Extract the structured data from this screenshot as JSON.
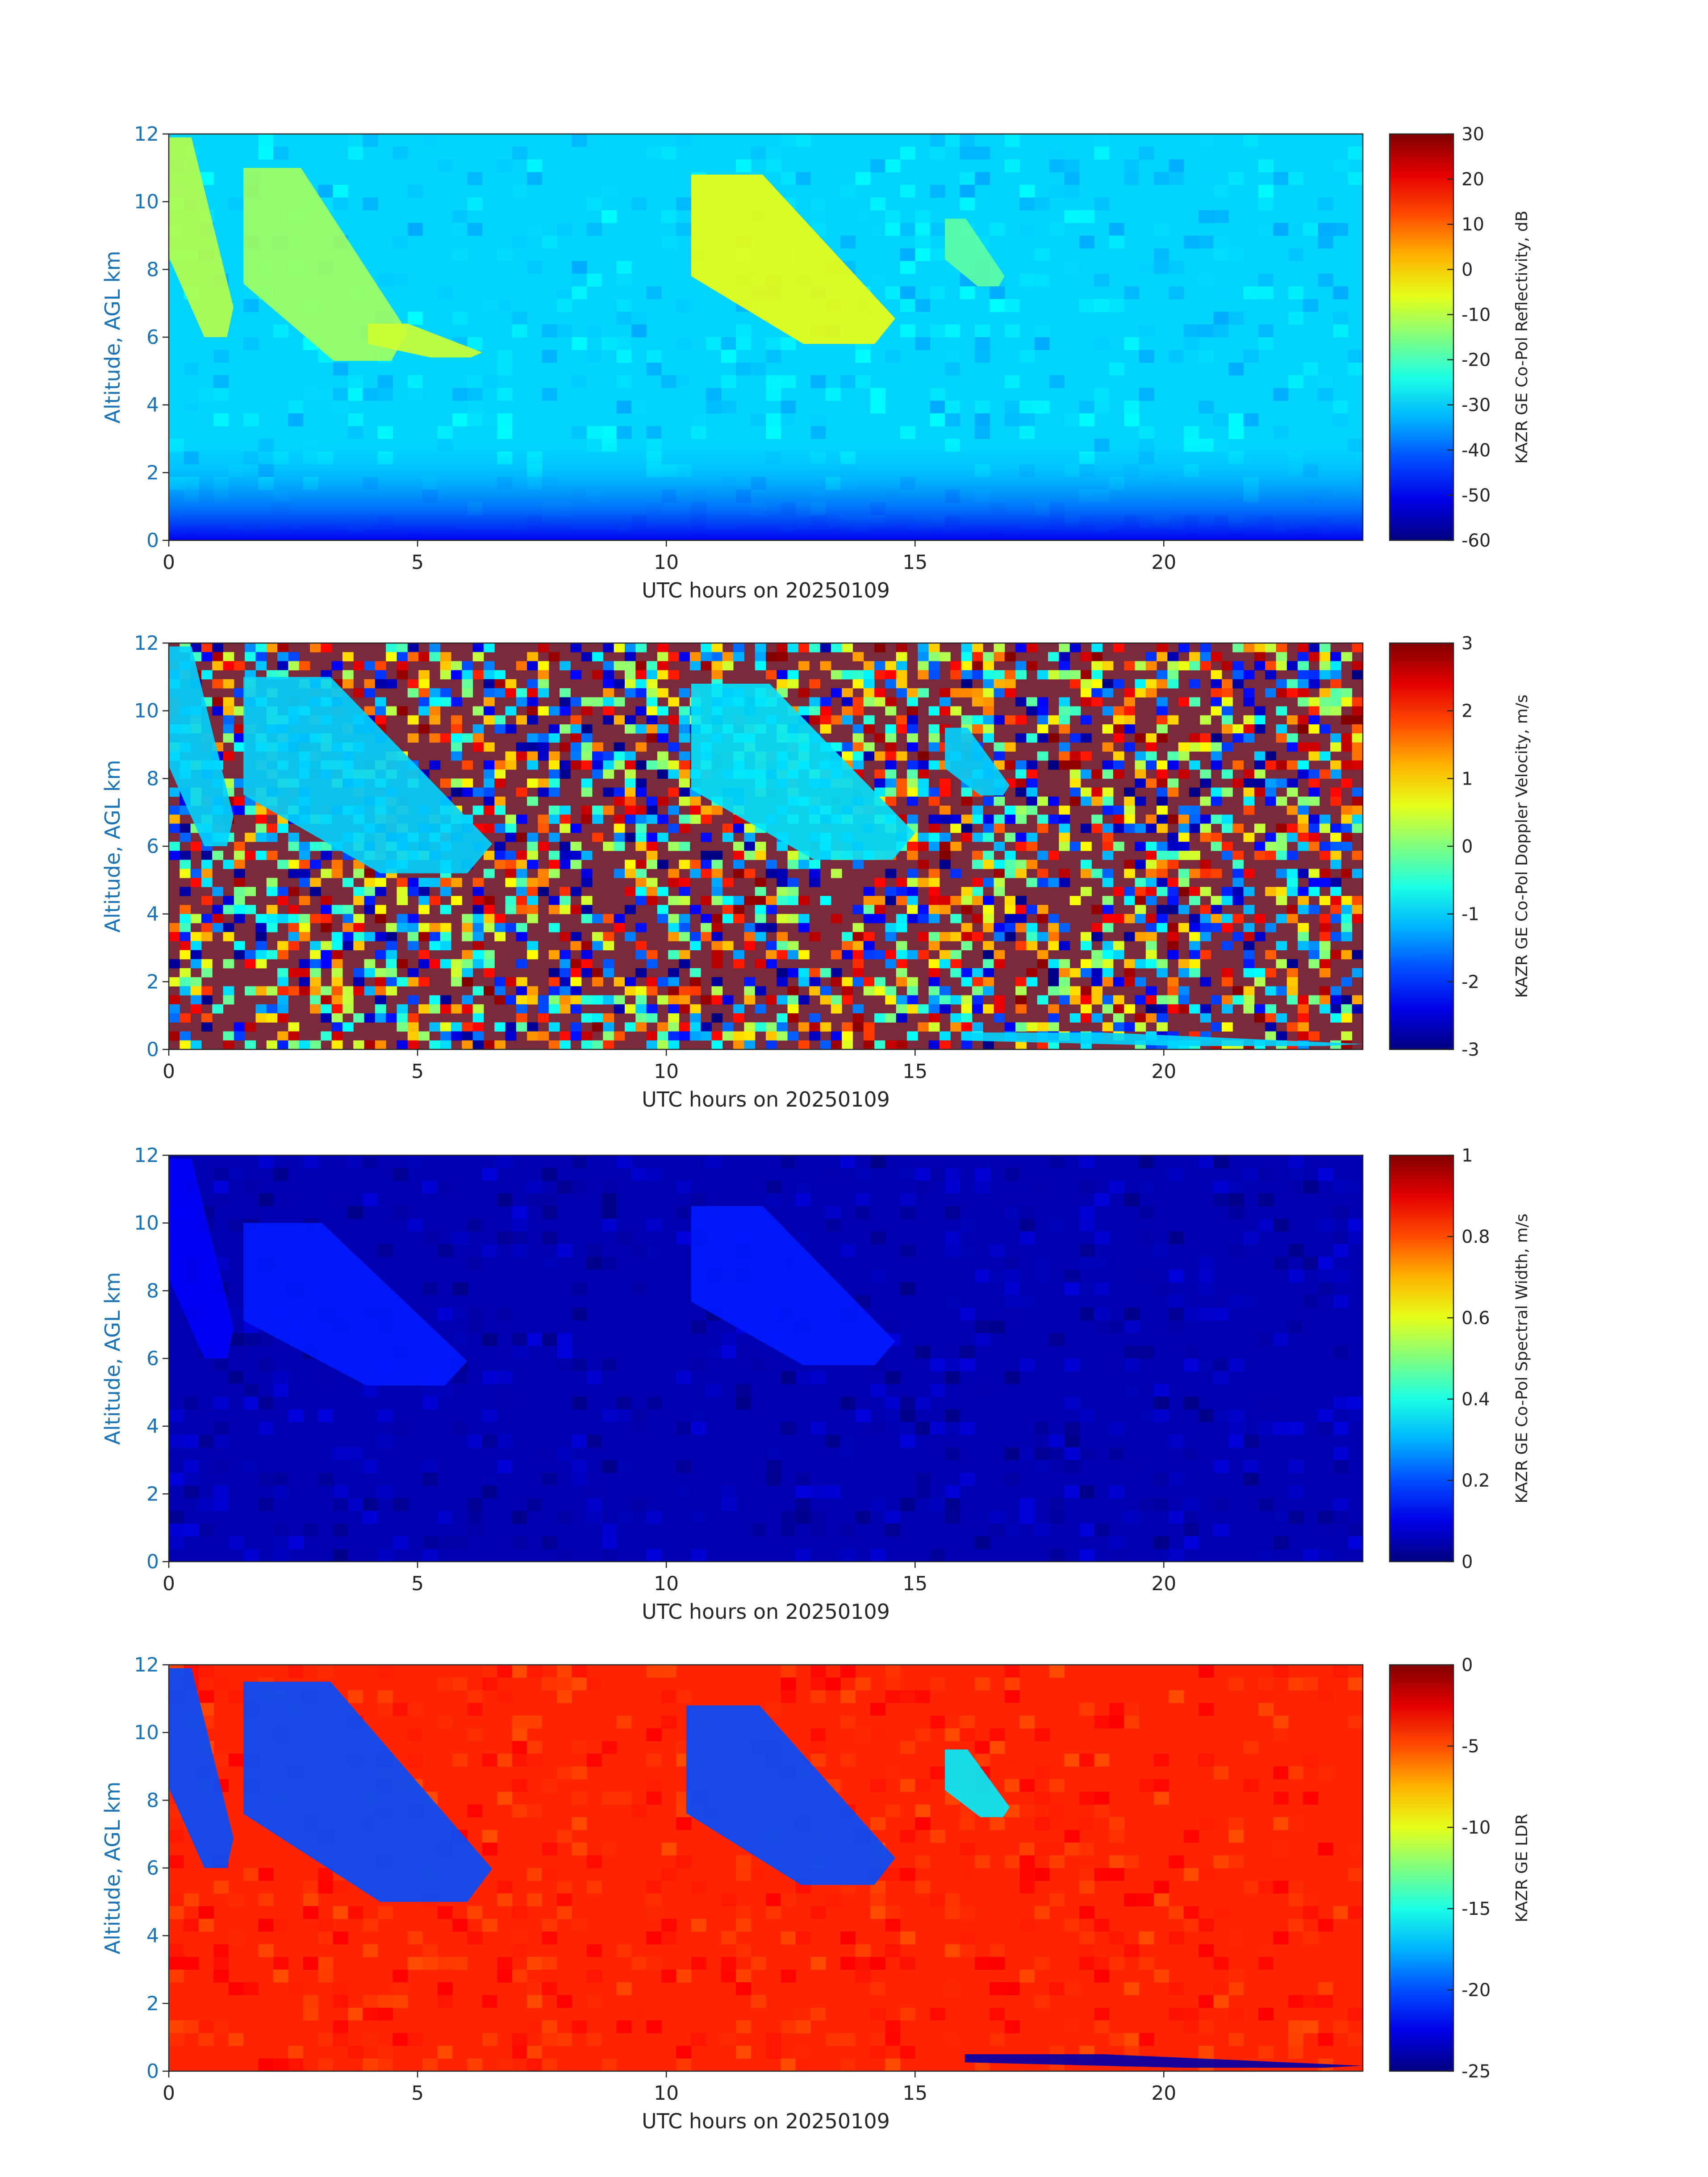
{
  "chart_data": [
    {
      "type": "heatmap",
      "ylabel": "Altitude, AGL km",
      "xlabel": "UTC hours on 20250109",
      "xlim": [
        0,
        24
      ],
      "ylim": [
        0,
        12
      ],
      "xticks": [
        "0",
        "5",
        "10",
        "15",
        "20"
      ],
      "yticks": [
        "0",
        "2",
        "4",
        "6",
        "8",
        "10",
        "12"
      ],
      "colorbar": {
        "label": "KAZR GE Co-Pol Reflectivity, dB",
        "range": [
          -60,
          30
        ],
        "ticks": [
          "30",
          "20",
          "10",
          "0",
          "-10",
          "-20",
          "-30",
          "-40",
          "-50",
          "-60"
        ],
        "colormap": "jet"
      },
      "background_value": -30,
      "features": [
        {
          "x": [
            0.0,
            1.3
          ],
          "y": [
            6.0,
            11.9
          ],
          "value": -10
        },
        {
          "x": [
            1.5,
            4.8
          ],
          "y": [
            5.3,
            11.0
          ],
          "value": -12
        },
        {
          "x": [
            4.0,
            6.3
          ],
          "y": [
            5.4,
            6.4
          ],
          "value": -8
        },
        {
          "x": [
            10.5,
            14.6
          ],
          "y": [
            5.8,
            10.8
          ],
          "value": -5
        },
        {
          "x": [
            15.6,
            16.8
          ],
          "y": [
            7.5,
            9.5
          ],
          "value": -18
        }
      ]
    },
    {
      "type": "heatmap",
      "ylabel": "Altitude, AGL km",
      "xlabel": "UTC hours on 20250109",
      "xlim": [
        0,
        24
      ],
      "ylim": [
        0,
        12
      ],
      "xticks": [
        "0",
        "5",
        "10",
        "15",
        "20"
      ],
      "yticks": [
        "0",
        "2",
        "4",
        "6",
        "8",
        "10",
        "12"
      ],
      "colorbar": {
        "label": "KAZR GE Co-Pol Doppler Velocity, m/s",
        "range": [
          -3,
          3
        ],
        "ticks": [
          "3",
          "2",
          "1",
          "0",
          "-1",
          "-2",
          "-3"
        ],
        "colormap": "jet"
      },
      "background_value": "noise",
      "features": [
        {
          "x": [
            0.0,
            1.3
          ],
          "y": [
            6.0,
            11.9
          ],
          "value": -1.0
        },
        {
          "x": [
            1.5,
            6.5
          ],
          "y": [
            5.2,
            11.0
          ],
          "value": -1.0
        },
        {
          "x": [
            10.5,
            15.0
          ],
          "y": [
            5.6,
            10.8
          ],
          "value": -0.9
        },
        {
          "x": [
            15.6,
            16.9
          ],
          "y": [
            7.5,
            9.5
          ],
          "value": -1.0
        },
        {
          "x": [
            16.0,
            24.0
          ],
          "y": [
            0.1,
            0.5
          ],
          "value": -1.0
        }
      ]
    },
    {
      "type": "heatmap",
      "ylabel": "Altitude, AGL km",
      "xlabel": "UTC hours on 20250109",
      "xlim": [
        0,
        24
      ],
      "ylim": [
        0,
        12
      ],
      "xticks": [
        "0",
        "5",
        "10",
        "15",
        "20"
      ],
      "yticks": [
        "0",
        "2",
        "4",
        "6",
        "8",
        "10",
        "12"
      ],
      "colorbar": {
        "label": "KAZR GE Co-Pol Spectral Width, m/s",
        "range": [
          0,
          1
        ],
        "ticks": [
          "1",
          "0.8",
          "0.6",
          "0.4",
          "0.2",
          "0"
        ],
        "colormap": "jet"
      },
      "background_value": 0.05,
      "features": [
        {
          "x": [
            0.0,
            1.3
          ],
          "y": [
            6.0,
            11.9
          ],
          "value": 0.12
        },
        {
          "x": [
            1.5,
            6.0
          ],
          "y": [
            5.2,
            10.0
          ],
          "value": 0.15
        },
        {
          "x": [
            10.5,
            14.6
          ],
          "y": [
            5.8,
            10.5
          ],
          "value": 0.15
        }
      ]
    },
    {
      "type": "heatmap",
      "ylabel": "Altitude, AGL km",
      "xlabel": "UTC hours on 20250109",
      "xlim": [
        0,
        24
      ],
      "ylim": [
        0,
        12
      ],
      "xticks": [
        "0",
        "5",
        "10",
        "15",
        "20"
      ],
      "yticks": [
        "0",
        "2",
        "4",
        "6",
        "8",
        "10",
        "12"
      ],
      "colorbar": {
        "label": "KAZR GE LDR",
        "range": [
          -25,
          0
        ],
        "ticks": [
          "0",
          "-5",
          "-10",
          "-15",
          "-20",
          "-25"
        ],
        "colormap": "jet"
      },
      "background_value": -4,
      "features": [
        {
          "x": [
            0.0,
            1.3
          ],
          "y": [
            6.0,
            11.9
          ],
          "value": -20
        },
        {
          "x": [
            1.5,
            6.5
          ],
          "y": [
            5.0,
            11.5
          ],
          "value": -20
        },
        {
          "x": [
            10.4,
            14.6
          ],
          "y": [
            5.5,
            10.8
          ],
          "value": -20
        },
        {
          "x": [
            15.6,
            16.9
          ],
          "y": [
            7.5,
            9.5
          ],
          "value": -16
        },
        {
          "x": [
            16.0,
            24.0
          ],
          "y": [
            0.1,
            0.5
          ],
          "value": -24
        }
      ]
    }
  ]
}
